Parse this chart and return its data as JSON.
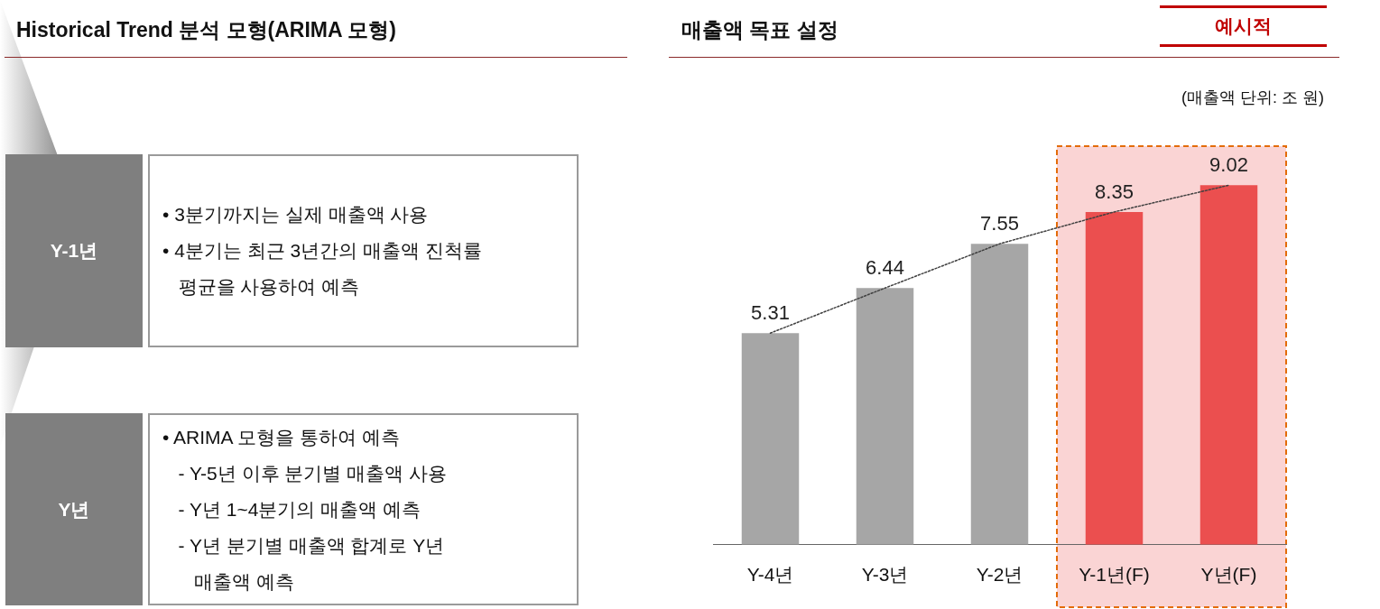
{
  "chart_data": [
    {
      "type": "other",
      "title": "Historical Trend 분석 모형(ARIMA 모형)"
    },
    {
      "type": "other",
      "title": "Y-1년",
      "annotations": [
        "• 3분기까지는 실제 매출액 사용",
        "• 4분기는 최근 3년간의 매출액 진척률\n   평균을 사용하여 예측"
      ]
    },
    {
      "type": "other",
      "title": "Y년",
      "annotations": [
        "• ARIMA 모형을 통하여 예측",
        "   - Y-5년 이후 분기별 매출액 사용",
        "   - Y년 1~4분기의 매출액 예측",
        "   - Y년 분기별 매출액 합계로 Y년\n      매출액 예측"
      ]
    },
    {
      "type": "bar",
      "title": "매출액 목표 설정",
      "annotations": [
        "(매출액 단위: 조 원)",
        "예시적"
      ],
      "categories": [
        "Y-4년",
        "Y-3년",
        "Y-2년",
        "Y-1년(F)",
        "Y년(F)"
      ],
      "series": [
        {
          "type": "bar",
          "colors": [
            "#a6a6a6",
            "#a6a6a6",
            "#a6a6a6",
            "#eb4f4f",
            "#eb4f4f"
          ],
          "values": [
            5.31,
            6.44,
            7.55,
            8.35,
            9.02
          ],
          "value_labels": [
            "5.31",
            "6.44",
            "7.55",
            "8.35",
            "9.02"
          ]
        },
        {
          "type": "line",
          "color": "#404040",
          "line_style": "dotted",
          "marker": "none",
          "values": [
            5.31,
            6.44,
            7.55,
            8.35,
            9.02
          ]
        }
      ],
      "tick_labels": "x",
      "grid": false,
      "legend": false,
      "bands": [
        {
          "axis": "x",
          "from": "Y-1년(F)",
          "to": "Y년(F)",
          "color": "#fad4d4"
        }
      ]
    }
  ]
}
